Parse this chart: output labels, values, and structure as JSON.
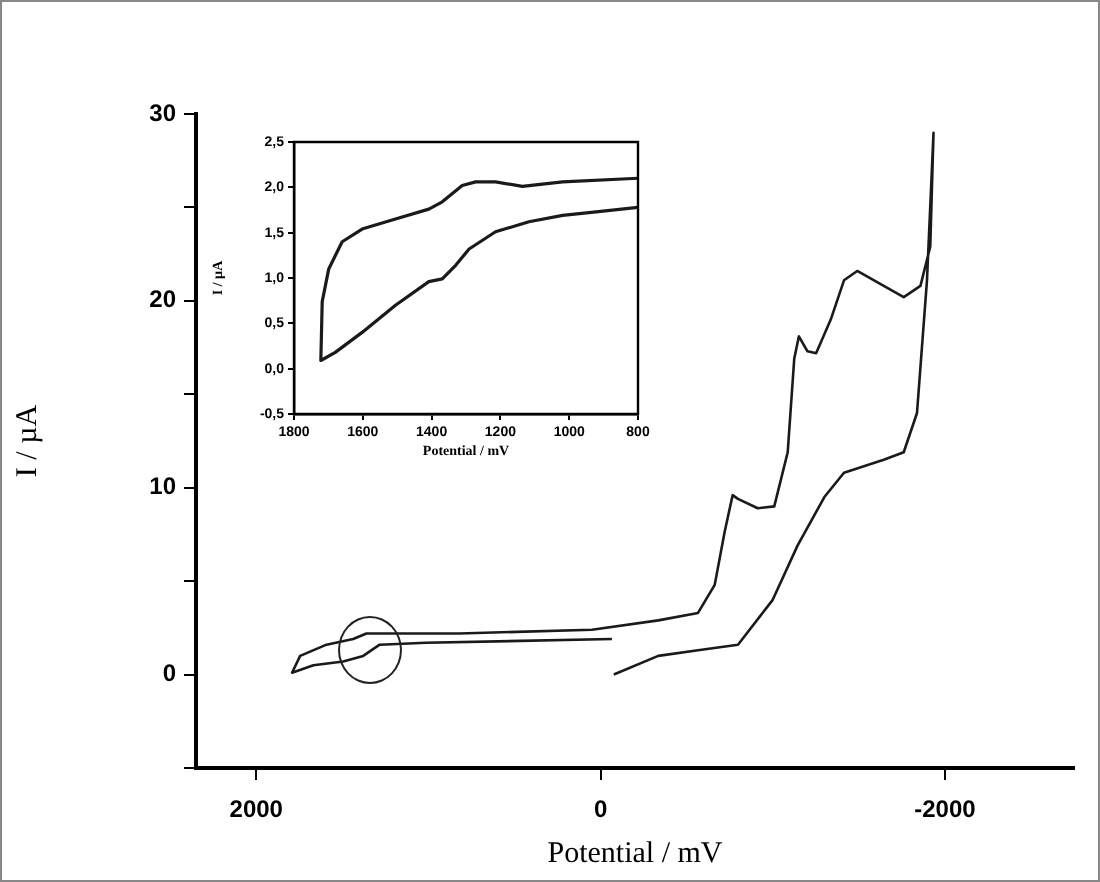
{
  "chart_data": [
    {
      "type": "line",
      "xlabel": "Potential / mV",
      "ylabel": "I / µA",
      "xlim": [
        2350,
        -2750
      ],
      "ylim": [
        -5,
        30
      ],
      "xticks": [
        2000,
        0,
        -2000
      ],
      "yticks": [
        {
          "value": -5,
          "label": null
        },
        0,
        {
          "value": 5,
          "label": null
        },
        10,
        {
          "value": 15,
          "label": null
        },
        20,
        {
          "value": 25,
          "label": null
        },
        30
      ],
      "grid": false,
      "legend": false,
      "marker": "none",
      "line_style": "solid",
      "series": [
        {
          "color": "#1a1a1a",
          "x": [
            -77,
            -335,
            -566,
            -798,
            -1000,
            -1144,
            -1300,
            -1414,
            -1645,
            -1761,
            -1838,
            -1896,
            -1934,
            -1915,
            -1858,
            -1761,
            -1645,
            -1491,
            -1414,
            -1337,
            -1252,
            -1202,
            -1152,
            -1125,
            -1087,
            -1009,
            -913,
            -798,
            -767,
            -720,
            -663,
            -566,
            -335,
            50,
            821,
            1360,
            1437,
            1592,
            1745,
            1792,
            1668,
            1495,
            1379,
            1283,
            1014,
            -66
          ],
          "values": [
            0,
            1.0,
            1.3,
            1.6,
            4.0,
            6.9,
            9.5,
            10.8,
            11.5,
            11.9,
            14.0,
            21.1,
            29.0,
            22.9,
            20.8,
            20.2,
            20.8,
            21.6,
            21.1,
            19.0,
            17.2,
            17.3,
            18.1,
            16.9,
            11.9,
            9.0,
            8.9,
            9.4,
            9.6,
            7.6,
            4.8,
            3.3,
            2.9,
            2.4,
            2.2,
            2.2,
            1.9,
            1.6,
            1.0,
            0.1,
            0.5,
            0.7,
            1.0,
            1.6,
            1.7,
            1.9
          ]
        }
      ]
    },
    {
      "type": "line",
      "xlabel": "Potential / mV",
      "ylabel": "I / µA",
      "xlim": [
        1800,
        800
      ],
      "ylim": [
        -0.5,
        2.5
      ],
      "xticks": [
        1800,
        1600,
        1400,
        1200,
        1000,
        800
      ],
      "yticks": [
        {
          "value": -0.5,
          "label": "-0,5"
        },
        {
          "value": 0,
          "label": "0,0"
        },
        {
          "value": 0.5,
          "label": "0,5"
        },
        {
          "value": 1,
          "label": "1,0"
        },
        {
          "value": 1.5,
          "label": "1,5"
        },
        {
          "value": 2,
          "label": "2,0"
        },
        {
          "value": 2.5,
          "label": "2,5"
        }
      ],
      "grid": false,
      "legend": false,
      "marker": "none",
      "line_style": "solid",
      "series": [
        {
          "color": "#1a1a1a",
          "x": [
            800,
            1019,
            1136,
            1214,
            1272,
            1311,
            1369,
            1408,
            1505,
            1602,
            1660,
            1699,
            1718,
            1722,
            1680,
            1602,
            1505,
            1408,
            1369,
            1330,
            1291,
            1214,
            1117,
            1019,
            922,
            800
          ],
          "values": [
            2.1,
            2.06,
            2.01,
            2.06,
            2.06,
            2.02,
            1.84,
            1.76,
            1.65,
            1.54,
            1.4,
            1.1,
            0.74,
            0.09,
            0.18,
            0.4,
            0.7,
            0.96,
            0.99,
            1.14,
            1.32,
            1.51,
            1.62,
            1.69,
            1.73,
            1.78
          ]
        }
      ]
    }
  ]
}
